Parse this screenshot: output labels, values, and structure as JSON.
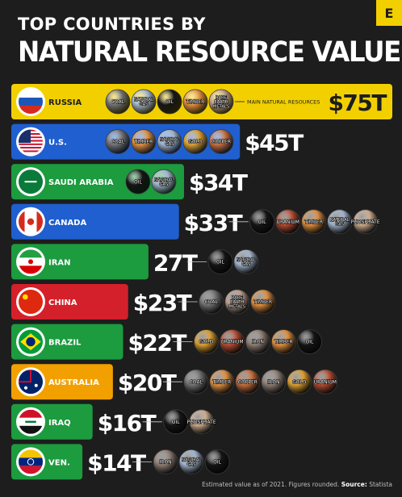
{
  "header": {
    "title_line1": "TOP COUNTRIES BY",
    "title_line2": "NATURAL RESOURCE VALUE",
    "logo_letter": "E"
  },
  "footer": {
    "note": "Estimated value as of 2021. Figures rounded.",
    "source_label": "Source:",
    "source_name": "Statista"
  },
  "chart_data": {
    "type": "bar",
    "orientation": "horizontal",
    "unit": "T",
    "callout_label": "MAIN NATURAL RESOURCES",
    "categories": [
      "RUSSIA",
      "U.S.",
      "SAUDI ARABIA",
      "CANADA",
      "IRAN",
      "CHINA",
      "BRAZIL",
      "AUSTRALIA",
      "IRAQ",
      "VEN."
    ],
    "values": [
      75,
      45,
      34,
      33,
      27,
      23,
      22,
      20,
      16,
      14
    ],
    "value_labels": [
      "$75T",
      "$45T",
      "$34T",
      "$33T",
      "27T",
      "$23T",
      "$22T",
      "$20T",
      "$16T",
      "$14T"
    ],
    "bar_colors": [
      "#f2d000",
      "#1f5fcf",
      "#1c9b3f",
      "#1f5fcf",
      "#1c9b3f",
      "#d4202a",
      "#1c9b3f",
      "#f2a000",
      "#1c9b3f",
      "#1c9b3f"
    ],
    "resources": [
      [
        "COAL",
        "NATURAL GAS",
        "OIL",
        "TIMBER",
        "RARE EARTH METALS"
      ],
      [
        "COAL",
        "TIMBER",
        "NATURAL GAS",
        "GOLD",
        "COPPER"
      ],
      [
        "OIL",
        "NATURAL GAS"
      ],
      [
        "OIL",
        "URANIUM",
        "TIMBER",
        "NATURAL GAS",
        "PHOSPHATE"
      ],
      [
        "OIL",
        "NATURAL GAS"
      ],
      [
        "COAL",
        "RARE EARTH METALS",
        "TIMBER"
      ],
      [
        "GOLD",
        "URANIUM",
        "IRON",
        "TIMBER",
        "OIL"
      ],
      [
        "COAL",
        "TIMBER",
        "COPPER",
        "IRON",
        "GOLD",
        "URANIUM"
      ],
      [
        "OIL",
        "PHOSPHATE"
      ],
      [
        "IRON",
        "NATURAL GAS",
        "OIL"
      ]
    ],
    "resource_colors": {
      "COAL": "#6e6e6e",
      "NATURAL GAS": "#9db0c8",
      "OIL": "#151515",
      "TIMBER": "#d98a3c",
      "RARE EARTH METALS": "#b89a8a",
      "GOLD": "#d69a2e",
      "COPPER": "#c06a3a",
      "URANIUM": "#b04a30",
      "IRON": "#8a7a70",
      "PHOSPHATE": "#c9a98a"
    },
    "flags": [
      "russia-flag",
      "us-flag",
      "saudi-arabia-flag",
      "canada-flag",
      "iran-flag",
      "china-flag",
      "brazil-flag",
      "australia-flag",
      "iraq-flag",
      "venezuela-flag"
    ]
  }
}
